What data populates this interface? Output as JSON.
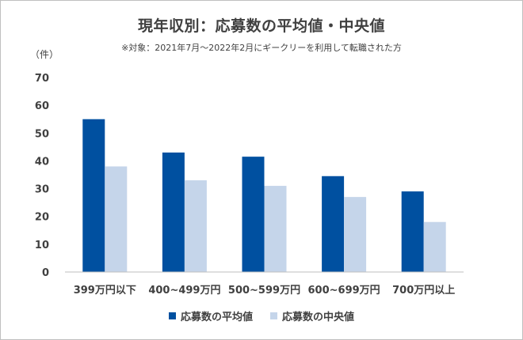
{
  "chart_data": {
    "type": "bar",
    "title": "現年収別：応募数の平均値・中央値",
    "subtitle": "※対象：2021年7月～2022年2月にギークリーを利用して転職された方",
    "ylabel": "（件）",
    "xlabel": "",
    "categories": [
      "399万円以下",
      "400~499万円",
      "500~599万円",
      "600~699万円",
      "700万円以上"
    ],
    "series": [
      {
        "name": "応募数の平均値",
        "color": "#0050a0",
        "values": [
          55,
          43,
          41.5,
          34.5,
          29
        ]
      },
      {
        "name": "応募数の中央値",
        "color": "#c5d5ea",
        "values": [
          38,
          33,
          31,
          27,
          18
        ]
      }
    ],
    "ylim": [
      0,
      70
    ],
    "yticks": [
      "0",
      "10",
      "20",
      "30",
      "40",
      "50",
      "60",
      "70"
    ],
    "grid": false,
    "legend": "bottom"
  }
}
